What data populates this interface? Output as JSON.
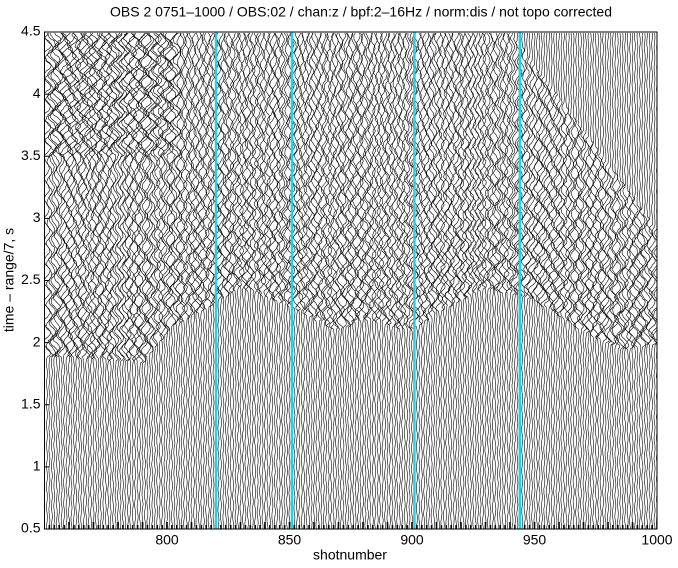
{
  "chart_data": {
    "type": "record-section",
    "title": "OBS 2 0751–1000 / OBS:02 / chan:z / bpf:2–16Hz / norm:dis / not topo corrected",
    "xlabel": "shotnumber",
    "ylabel": "time – range/7, s",
    "xlim": [
      750,
      1000
    ],
    "xticks": [
      800,
      850,
      900,
      950,
      1000
    ],
    "ylim": [
      0.5,
      4.5
    ],
    "yticks": [
      0.5,
      1,
      1.5,
      2,
      2.5,
      3,
      3.5,
      4,
      4.5
    ],
    "highlighted_shots": {
      "color": "#22d3e6",
      "x": [
        820,
        851,
        901,
        944
      ]
    }
  }
}
